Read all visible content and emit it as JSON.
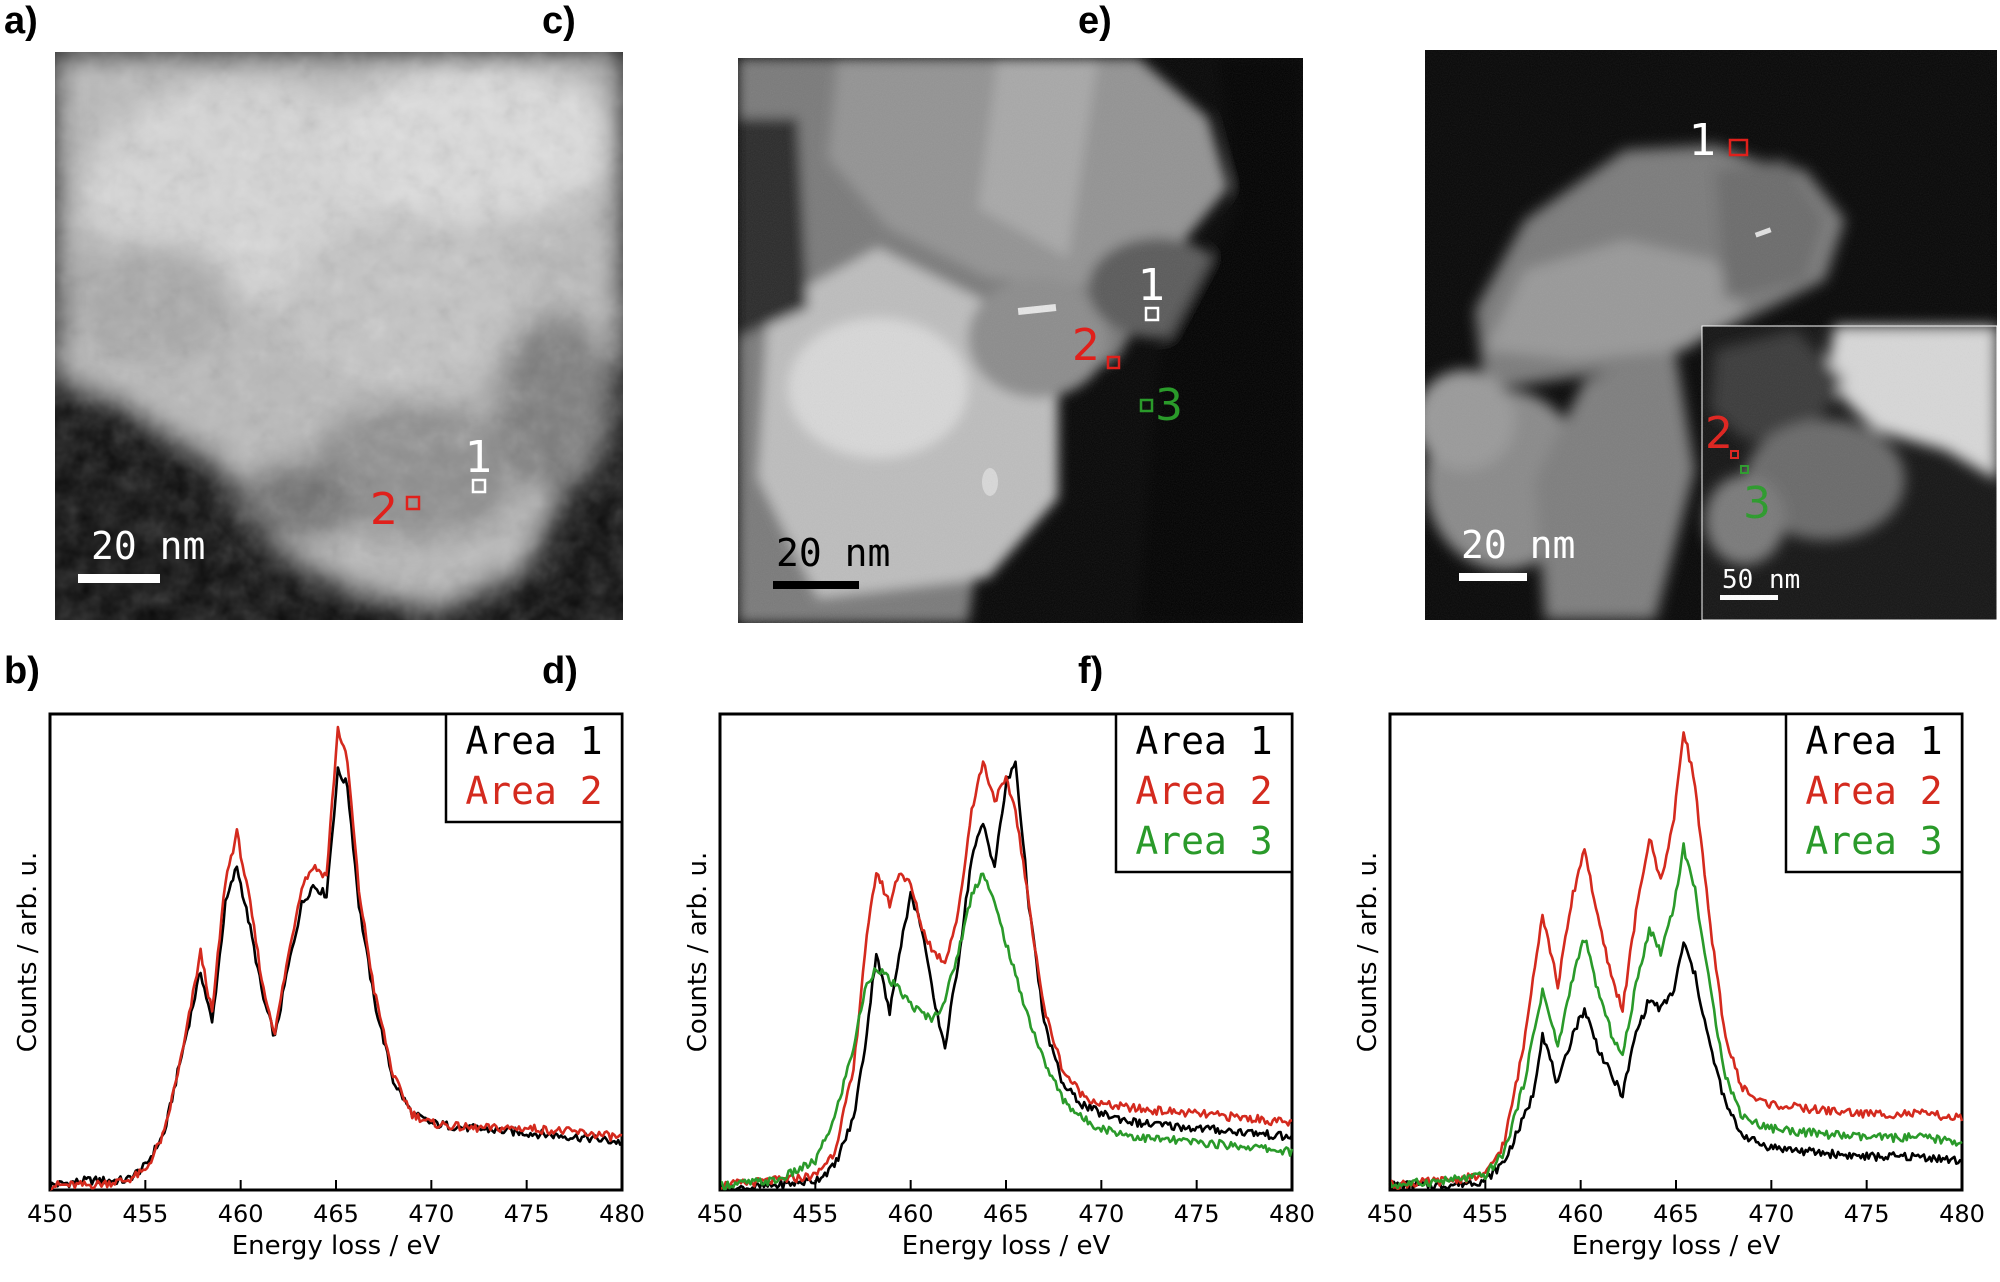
{
  "figure": {
    "panel_labels": [
      "a)",
      "c)",
      "e)",
      "b)",
      "d)",
      "f)"
    ]
  },
  "micrographs": [
    {
      "id": "a",
      "scale_bar_label": "20 nm",
      "markers": [
        {
          "label": "1",
          "color": "#ffffff"
        },
        {
          "label": "2",
          "color": "#e0201b"
        }
      ]
    },
    {
      "id": "c",
      "scale_bar_label": "20 nm",
      "markers": [
        {
          "label": "1",
          "color": "#ffffff"
        },
        {
          "label": "2",
          "color": "#e0201b"
        },
        {
          "label": "3",
          "color": "#2a9a2a"
        }
      ]
    },
    {
      "id": "e",
      "scale_bar_label": "20 nm",
      "inset_scale_bar_label": "50 nm",
      "markers": [
        {
          "label": "1",
          "color": "#ffffff"
        },
        {
          "label": "2",
          "color": "#e0201b"
        },
        {
          "label": "3",
          "color": "#2a9a2a"
        }
      ]
    }
  ],
  "chart_data": [
    {
      "panel": "b",
      "type": "line",
      "xlabel": "Energy loss / eV",
      "ylabel": "Counts / arb. u.",
      "xlim": [
        450,
        480
      ],
      "ylim": [
        0,
        1
      ],
      "xticks": [
        450,
        455,
        460,
        465,
        470,
        475,
        480
      ],
      "yticks_shown": false,
      "legend_position": "top-right",
      "series": [
        {
          "name": "Area 1",
          "color": "#000000",
          "x": [
            450,
            452,
            454,
            455,
            456,
            457,
            457.9,
            458.5,
            459.2,
            459.8,
            460.5,
            461.2,
            461.8,
            462.4,
            463.2,
            463.8,
            464.5,
            465.1,
            465.6,
            466.2,
            467,
            468,
            469,
            470,
            472,
            475,
            478,
            480
          ],
          "y": [
            0.01,
            0.02,
            0.02,
            0.05,
            0.12,
            0.3,
            0.46,
            0.35,
            0.6,
            0.68,
            0.55,
            0.4,
            0.32,
            0.45,
            0.6,
            0.64,
            0.62,
            0.88,
            0.85,
            0.6,
            0.4,
            0.23,
            0.16,
            0.14,
            0.13,
            0.12,
            0.11,
            0.1
          ]
        },
        {
          "name": "Area 2",
          "color": "#d42a1e",
          "x": [
            450,
            452,
            454,
            455,
            456,
            457,
            457.9,
            458.5,
            459.2,
            459.8,
            460.5,
            461.2,
            461.8,
            462.4,
            463.2,
            463.8,
            464.5,
            465.1,
            465.6,
            466.2,
            467,
            468,
            469,
            470,
            472,
            475,
            478,
            480
          ],
          "y": [
            0.01,
            0.01,
            0.02,
            0.04,
            0.12,
            0.3,
            0.5,
            0.37,
            0.65,
            0.75,
            0.6,
            0.42,
            0.33,
            0.47,
            0.64,
            0.68,
            0.66,
            0.97,
            0.9,
            0.63,
            0.42,
            0.24,
            0.16,
            0.14,
            0.13,
            0.13,
            0.12,
            0.11
          ]
        }
      ]
    },
    {
      "panel": "d",
      "type": "line",
      "xlabel": "Energy loss / eV",
      "ylabel": "Counts / arb. u.",
      "xlim": [
        450,
        480
      ],
      "ylim": [
        0,
        1
      ],
      "xticks": [
        450,
        455,
        460,
        465,
        470,
        475,
        480
      ],
      "yticks_shown": false,
      "legend_position": "top-right",
      "series": [
        {
          "name": "Area 1",
          "color": "#000000",
          "x": [
            450,
            453,
            455,
            456,
            457,
            457.6,
            458.2,
            458.9,
            459.4,
            460,
            460.6,
            461.2,
            461.8,
            462.5,
            463.2,
            463.8,
            464.4,
            465,
            465.5,
            466.2,
            467,
            468,
            469,
            470,
            472,
            475,
            478,
            480
          ],
          "y": [
            0.0,
            0.01,
            0.02,
            0.05,
            0.15,
            0.3,
            0.5,
            0.37,
            0.5,
            0.62,
            0.55,
            0.4,
            0.3,
            0.48,
            0.7,
            0.77,
            0.68,
            0.85,
            0.9,
            0.6,
            0.35,
            0.22,
            0.18,
            0.16,
            0.14,
            0.13,
            0.12,
            0.11
          ]
        },
        {
          "name": "Area 2",
          "color": "#d42a1e",
          "x": [
            450,
            453,
            455,
            456,
            457,
            457.6,
            458.2,
            458.9,
            459.4,
            460,
            460.6,
            461.2,
            461.8,
            462.5,
            463.2,
            463.8,
            464.4,
            465,
            465.5,
            466.2,
            467,
            468,
            469,
            470,
            472,
            475,
            478,
            480
          ],
          "y": [
            0.01,
            0.02,
            0.03,
            0.08,
            0.25,
            0.5,
            0.67,
            0.6,
            0.67,
            0.64,
            0.55,
            0.5,
            0.48,
            0.58,
            0.8,
            0.9,
            0.82,
            0.86,
            0.8,
            0.6,
            0.38,
            0.25,
            0.2,
            0.18,
            0.17,
            0.16,
            0.15,
            0.14
          ]
        },
        {
          "name": "Area 3",
          "color": "#2a9a2a",
          "x": [
            450,
            453,
            455,
            456,
            457,
            457.6,
            458.2,
            458.9,
            459.4,
            460,
            460.6,
            461.2,
            461.8,
            462.5,
            463.2,
            463.8,
            464.4,
            465,
            465.5,
            466.2,
            467,
            468,
            469,
            470,
            472,
            475,
            478,
            480
          ],
          "y": [
            0.01,
            0.02,
            0.06,
            0.15,
            0.3,
            0.42,
            0.47,
            0.44,
            0.42,
            0.39,
            0.37,
            0.36,
            0.4,
            0.5,
            0.62,
            0.67,
            0.6,
            0.52,
            0.45,
            0.36,
            0.27,
            0.19,
            0.15,
            0.13,
            0.11,
            0.1,
            0.09,
            0.08
          ]
        }
      ]
    },
    {
      "panel": "f",
      "type": "line",
      "xlabel": "Energy loss / eV",
      "ylabel": "Counts / arb. u.",
      "xlim": [
        450,
        480
      ],
      "ylim": [
        0,
        1
      ],
      "xticks": [
        450,
        455,
        460,
        465,
        470,
        475,
        480
      ],
      "yticks_shown": false,
      "legend_position": "top-right",
      "series": [
        {
          "name": "Area 1",
          "color": "#000000",
          "x": [
            450,
            453,
            455,
            456,
            457,
            457.5,
            458,
            458.8,
            459.6,
            460.2,
            460.9,
            461.6,
            462.2,
            462.9,
            463.6,
            464.2,
            464.9,
            465.4,
            466,
            466.8,
            467.6,
            468.4,
            469.2,
            470,
            472,
            475,
            478,
            480
          ],
          "y": [
            0.01,
            0.01,
            0.02,
            0.06,
            0.15,
            0.2,
            0.33,
            0.22,
            0.33,
            0.38,
            0.3,
            0.24,
            0.2,
            0.33,
            0.4,
            0.38,
            0.42,
            0.52,
            0.45,
            0.3,
            0.18,
            0.12,
            0.1,
            0.09,
            0.08,
            0.07,
            0.07,
            0.06
          ]
        },
        {
          "name": "Area 2",
          "color": "#d42a1e",
          "x": [
            450,
            453,
            455,
            456,
            457,
            457.5,
            458,
            458.8,
            459.6,
            460.2,
            460.9,
            461.6,
            462.2,
            462.9,
            463.6,
            464.2,
            464.9,
            465.4,
            466,
            466.8,
            467.6,
            468.4,
            469.2,
            470,
            472,
            475,
            478,
            480
          ],
          "y": [
            0.01,
            0.02,
            0.03,
            0.1,
            0.3,
            0.45,
            0.58,
            0.43,
            0.62,
            0.72,
            0.57,
            0.45,
            0.38,
            0.58,
            0.74,
            0.65,
            0.78,
            0.97,
            0.85,
            0.55,
            0.32,
            0.22,
            0.19,
            0.18,
            0.17,
            0.16,
            0.16,
            0.15
          ]
        },
        {
          "name": "Area 3",
          "color": "#2a9a2a",
          "x": [
            450,
            453,
            455,
            456,
            457,
            457.5,
            458,
            458.8,
            459.6,
            460.2,
            460.9,
            461.6,
            462.2,
            462.9,
            463.6,
            464.2,
            464.9,
            465.4,
            466,
            466.8,
            467.6,
            468.4,
            469.2,
            470,
            472,
            475,
            478,
            480
          ],
          "y": [
            0.01,
            0.02,
            0.03,
            0.08,
            0.22,
            0.32,
            0.42,
            0.3,
            0.45,
            0.53,
            0.42,
            0.33,
            0.28,
            0.43,
            0.55,
            0.5,
            0.6,
            0.72,
            0.63,
            0.42,
            0.24,
            0.16,
            0.14,
            0.13,
            0.12,
            0.11,
            0.11,
            0.1
          ]
        }
      ]
    }
  ]
}
